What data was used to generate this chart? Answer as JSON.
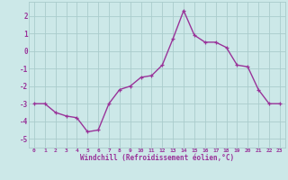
{
  "x": [
    0,
    1,
    2,
    3,
    4,
    5,
    6,
    7,
    8,
    9,
    10,
    11,
    12,
    13,
    14,
    15,
    16,
    17,
    18,
    19,
    20,
    21,
    22,
    23
  ],
  "y": [
    -3.0,
    -3.0,
    -3.5,
    -3.7,
    -3.8,
    -4.6,
    -4.5,
    -3.0,
    -2.2,
    -2.0,
    -1.5,
    -1.4,
    -0.8,
    0.7,
    2.3,
    0.9,
    0.5,
    0.5,
    0.2,
    -0.8,
    -0.9,
    -2.2,
    -3.0,
    -3.0
  ],
  "line_color": "#993399",
  "marker": "+",
  "bg_color": "#cce8e8",
  "grid_color": "#aacccc",
  "xlabel": "Windchill (Refroidissement éolien,°C)",
  "xlabel_color": "#993399",
  "xlim": [
    -0.5,
    23.5
  ],
  "ylim": [
    -5.5,
    2.8
  ],
  "yticks": [
    -5,
    -4,
    -3,
    -2,
    -1,
    0,
    1,
    2
  ],
  "xtick_labels": [
    "0",
    "1",
    "2",
    "3",
    "4",
    "5",
    "6",
    "7",
    "8",
    "9",
    "10",
    "11",
    "12",
    "13",
    "14",
    "15",
    "16",
    "17",
    "18",
    "19",
    "20",
    "21",
    "22",
    "23"
  ],
  "tick_color": "#993399",
  "markersize": 3.5,
  "linewidth": 1.0,
  "markeredgewidth": 0.9
}
